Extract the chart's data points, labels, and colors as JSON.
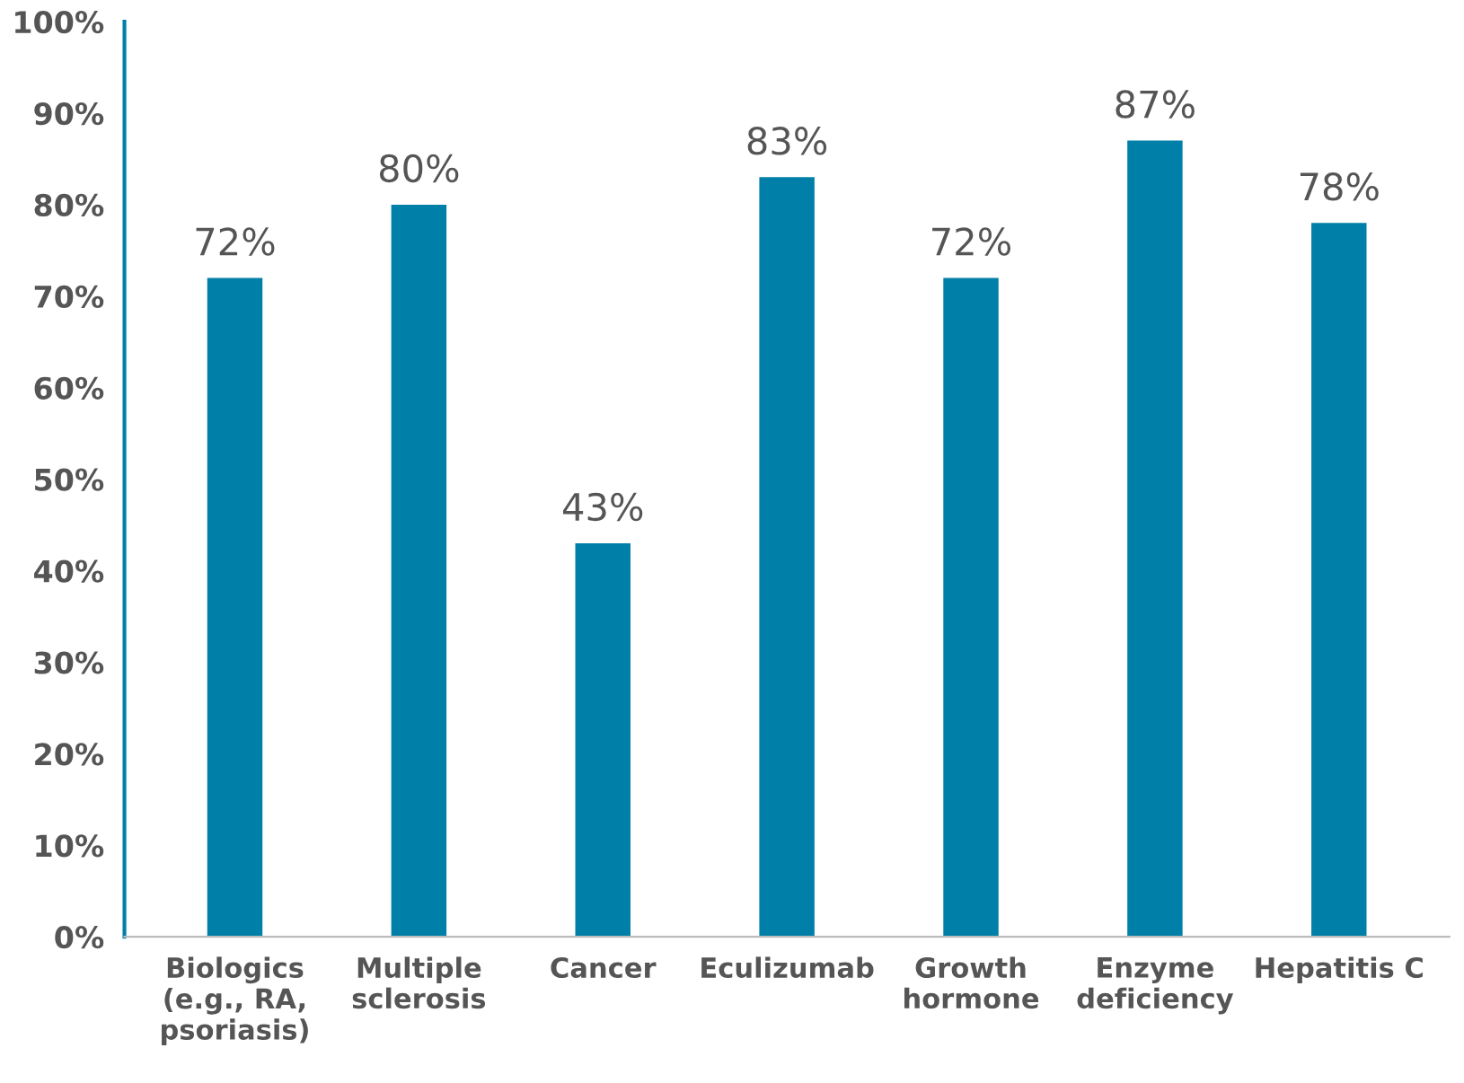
{
  "chart_data": {
    "type": "bar",
    "categories": [
      "Biologics\n(e.g., RA,\npsoriasis)",
      "Multiple\nsclerosis",
      "Cancer",
      "Eculizumab",
      "Growth\nhormone",
      "Enzyme\ndeficiency",
      "Hepatitis C"
    ],
    "values": [
      72,
      80,
      43,
      83,
      72,
      87,
      78
    ],
    "value_labels": [
      "72%",
      "80%",
      "43%",
      "83%",
      "72%",
      "87%",
      "78%"
    ],
    "color": "#0080a8",
    "ylim": [
      0,
      100
    ],
    "yticks": [
      {
        "value": 0,
        "label": "0%"
      },
      {
        "value": 10,
        "label": "10%"
      },
      {
        "value": 20,
        "label": "20%"
      },
      {
        "value": 30,
        "label": "30%"
      },
      {
        "value": 40,
        "label": "40%"
      },
      {
        "value": 50,
        "label": "50%"
      },
      {
        "value": 60,
        "label": "60%"
      },
      {
        "value": 70,
        "label": "70%"
      },
      {
        "value": 80,
        "label": "80%"
      },
      {
        "value": 90,
        "label": "90%"
      },
      {
        "value": 100,
        "label": "100%"
      }
    ],
    "grid": false,
    "legend": false
  }
}
